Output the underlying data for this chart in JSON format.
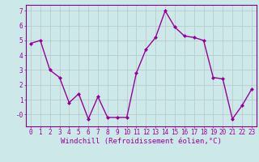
{
  "x": [
    0,
    1,
    2,
    3,
    4,
    5,
    6,
    7,
    8,
    9,
    10,
    11,
    12,
    13,
    14,
    15,
    16,
    17,
    18,
    19,
    20,
    21,
    22,
    23
  ],
  "y": [
    4.8,
    5.0,
    3.0,
    2.5,
    0.8,
    1.4,
    -0.3,
    1.2,
    -0.2,
    -0.2,
    -0.2,
    2.8,
    4.4,
    5.2,
    7.0,
    5.9,
    5.3,
    5.2,
    5.0,
    2.5,
    2.4,
    -0.3,
    0.6,
    1.7
  ],
  "line_color": "#990099",
  "marker": "D",
  "marker_size": 2.0,
  "linewidth": 1.0,
  "xlabel": "Windchill (Refroidissement éolien,°C)",
  "xlabel_fontsize": 6.5,
  "ylim": [
    -0.8,
    7.4
  ],
  "xlim": [
    -0.5,
    23.5
  ],
  "yticks": [
    0,
    1,
    2,
    3,
    4,
    5,
    6,
    7
  ],
  "ytick_labels": [
    "-0",
    "1",
    "2",
    "3",
    "4",
    "5",
    "6",
    "7"
  ],
  "xticks": [
    0,
    1,
    2,
    3,
    4,
    5,
    6,
    7,
    8,
    9,
    10,
    11,
    12,
    13,
    14,
    15,
    16,
    17,
    18,
    19,
    20,
    21,
    22,
    23
  ],
  "background_color": "#cce8e8",
  "grid_color": "#bbcccc",
  "tick_fontsize": 5.5,
  "border_color": "#880088"
}
